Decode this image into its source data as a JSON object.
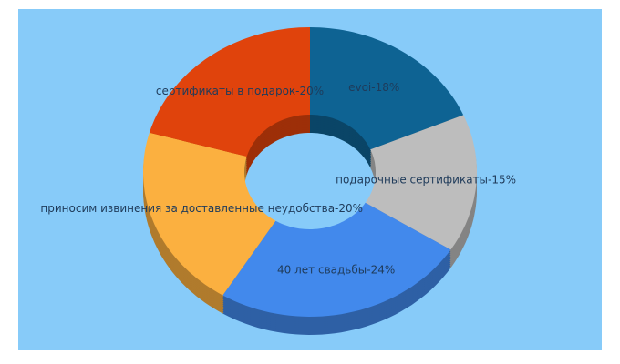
{
  "chart_data": {
    "type": "donut",
    "values": [
      18,
      15,
      24,
      20,
      20
    ],
    "value_labels": [
      "evoi-18%",
      "подарочные сертификаты-15%",
      "40 лет свадьбы-24%",
      "приносим извинения за доставленные неудобства-20%",
      "сертификаты в подарок-20%"
    ],
    "colors": [
      "#0e6393",
      "#bdbdbd",
      "#4289ec",
      "#fbb040",
      "#e0430c"
    ]
  }
}
